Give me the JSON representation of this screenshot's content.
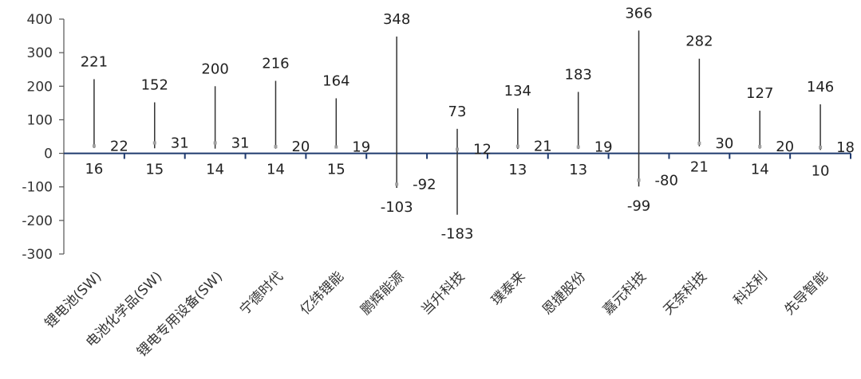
{
  "chart_data": {
    "type": "high-low-current",
    "categories": [
      "锂电池(SW)",
      "电池化学品(SW)",
      "锂电专用设备(SW)",
      "宁德时代",
      "亿纬锂能",
      "鹏辉能源",
      "当升科技",
      "璞泰来",
      "恩捷股份",
      "嘉元科技",
      "天奈科技",
      "科达利",
      "先导智能"
    ],
    "series": [
      {
        "values": [
          221,
          152,
          200,
          216,
          164,
          348,
          73,
          134,
          183,
          366,
          282,
          127,
          146
        ]
      },
      {
        "values": [
          16,
          15,
          14,
          14,
          15,
          -103,
          -183,
          13,
          13,
          -99,
          21,
          14,
          10
        ]
      },
      {
        "values": [
          22,
          31,
          31,
          20,
          19,
          -92,
          12,
          21,
          19,
          -80,
          30,
          20,
          18
        ]
      }
    ],
    "high_labels": [
      "221",
      "152",
      "200",
      "216",
      "164",
      "348",
      "73",
      "134",
      "183",
      "366",
      "282",
      "127",
      "146"
    ],
    "low_labels": [
      "16",
      "15",
      "14",
      "14",
      "15",
      "-103",
      "-183",
      "13",
      "13",
      "-99",
      "21",
      "14",
      "10"
    ],
    "current_labels": [
      "22",
      "31",
      "31",
      "20",
      "19",
      "-92",
      "12",
      "21",
      "19",
      "-80",
      "30",
      "20",
      "18"
    ],
    "ylim": [
      -300,
      400
    ],
    "yticks": [
      "400",
      "300",
      "200",
      "100",
      "0",
      "-100",
      "-200",
      "-300"
    ],
    "ytick_values": [
      400,
      300,
      200,
      100,
      0,
      -100,
      -200,
      -300
    ],
    "colors": {
      "line": "#333333",
      "axis": "#1f3a6e",
      "marker": "#a0a0a0"
    }
  }
}
